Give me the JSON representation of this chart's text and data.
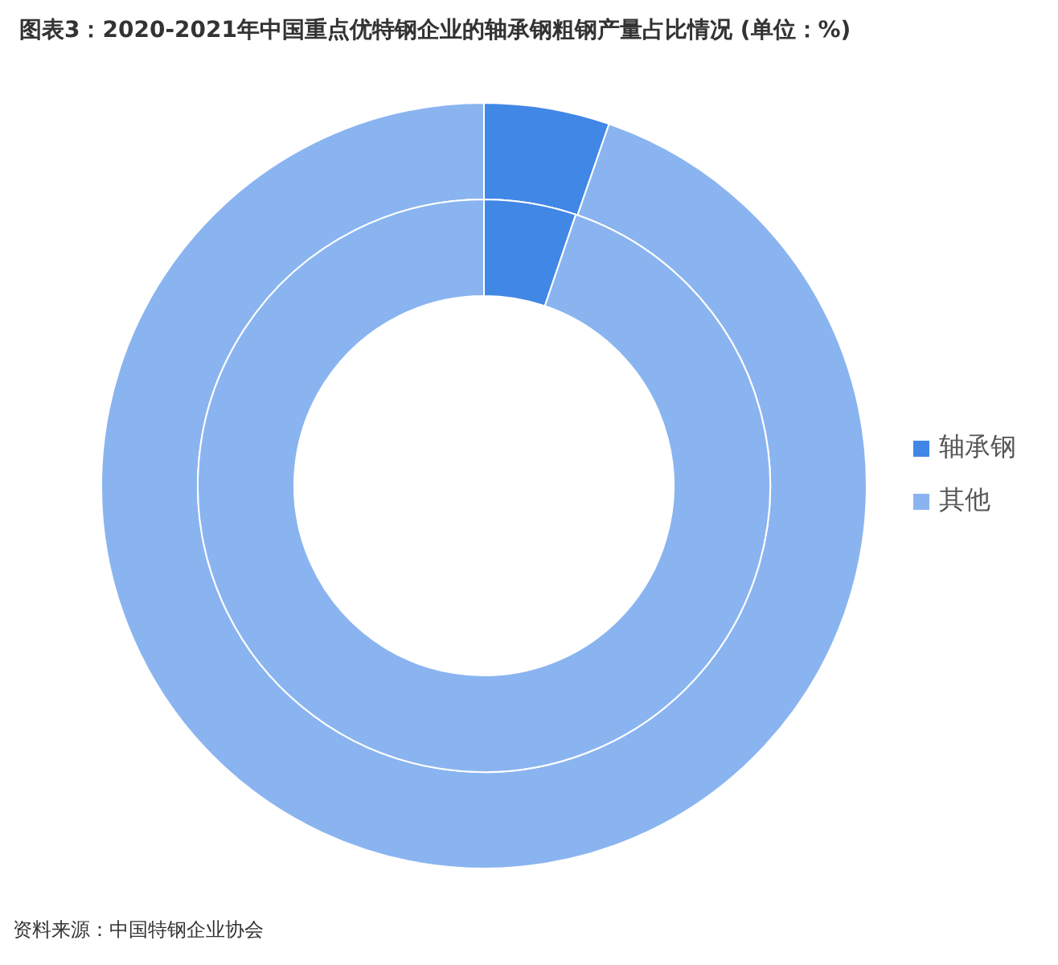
{
  "chart_data": {
    "type": "donut",
    "title": "图表3：2020-2021年中国重点优特钢企业的轴承钢粗钢产量占比情况 (单位：%)",
    "categories": [
      "轴承钢",
      "其他"
    ],
    "colors": [
      "#4187e6",
      "#8ab4f0"
    ],
    "series": [
      {
        "values": [
          5.3,
          94.7
        ]
      },
      {
        "values": [
          5.2,
          94.8
        ]
      }
    ],
    "legend": "right",
    "annotations": [
      "资料来源：中国特钢企业协会"
    ]
  }
}
